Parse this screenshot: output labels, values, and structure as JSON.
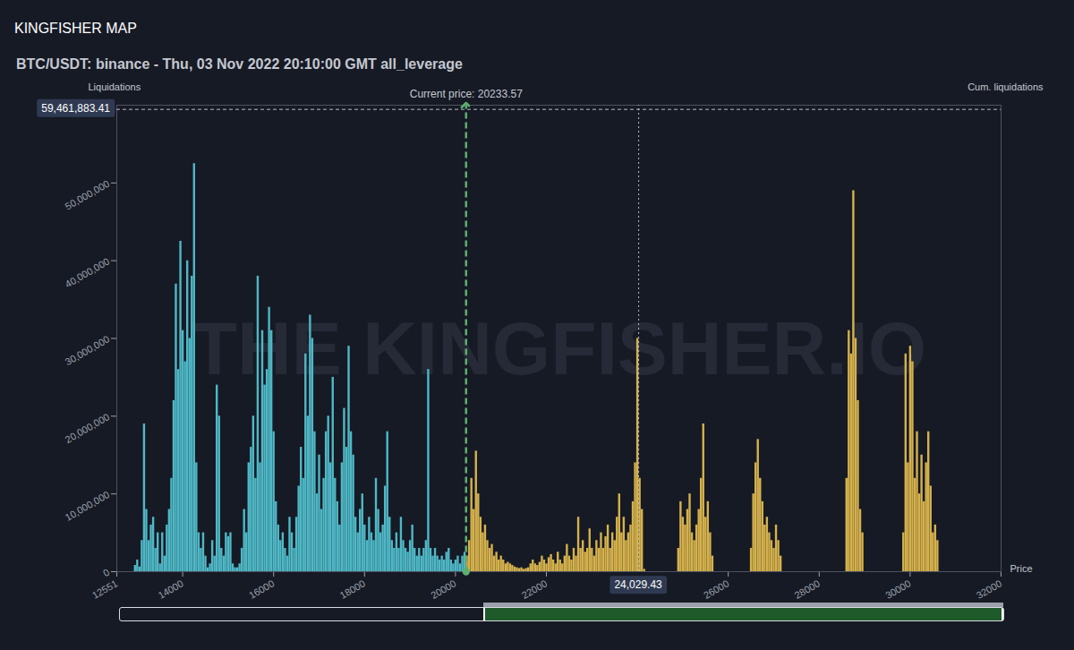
{
  "chart_data": {
    "type": "bar",
    "title": "KINGFISHER MAP",
    "subtitle": "BTC/USDT: binance - Thu, 03 Nov 2022 20:10:00 GMT all_leverage",
    "y_label": "Liquidations",
    "y2_label": "Cum. liquidations",
    "x_label": "Price",
    "watermark": "THE KINGFISHER.IO",
    "xlim": [
      12551,
      32000
    ],
    "xticks": [
      12551,
      14000,
      16000,
      18000,
      20000,
      22000,
      26000,
      28000,
      30000,
      32000
    ],
    "ylim": [
      0,
      60000000
    ],
    "yticks": [
      0,
      {
        "value": 10000000,
        "label": "10,000,000"
      },
      {
        "value": 20000000,
        "label": "20,000,000"
      },
      {
        "value": 30000000,
        "label": "30,000,000"
      },
      {
        "value": 40000000,
        "label": "40,000,000"
      },
      {
        "value": 50000000,
        "label": "50,000,000"
      }
    ],
    "grid": false,
    "annotations": [
      {
        "text": "Current price: 20233.57",
        "x": 20233.57
      }
    ],
    "crosshair": {
      "x": {
        "value": 24029.43,
        "label": "24,029.43"
      },
      "y": {
        "value": 59461883.41,
        "label": "59,461,883.41"
      }
    },
    "series": [
      {
        "color": "#4fb8c6",
        "x": [
          12950,
          13000,
          13050,
          13100,
          13150,
          13200,
          13250,
          13300,
          13350,
          13400,
          13450,
          13500,
          13550,
          13600,
          13650,
          13700,
          13750,
          13800,
          13850,
          13900,
          13950,
          14000,
          14050,
          14100,
          14150,
          14200,
          14250,
          14300,
          14350,
          14400,
          14450,
          14500,
          14550,
          14600,
          14650,
          14700,
          14750,
          14800,
          14850,
          14900,
          14950,
          15000,
          15050,
          15100,
          15150,
          15200,
          15250,
          15300,
          15350,
          15400,
          15450,
          15500,
          15550,
          15600,
          15650,
          15700,
          15750,
          15800,
          15850,
          15900,
          15950,
          16000,
          16050,
          16100,
          16150,
          16200,
          16250,
          16300,
          16350,
          16400,
          16450,
          16500,
          16550,
          16600,
          16650,
          16700,
          16750,
          16800,
          16850,
          16900,
          16950,
          17000,
          17050,
          17100,
          17150,
          17200,
          17250,
          17300,
          17350,
          17400,
          17450,
          17500,
          17550,
          17600,
          17650,
          17700,
          17750,
          17800,
          17850,
          17900,
          17950,
          18000,
          18050,
          18100,
          18150,
          18200,
          18250,
          18300,
          18350,
          18400,
          18450,
          18500,
          18550,
          18600,
          18650,
          18700,
          18750,
          18800,
          18850,
          18900,
          18950,
          19000,
          19050,
          19100,
          19150,
          19200,
          19250,
          19300,
          19350,
          19400,
          19450,
          19500,
          19550,
          19600,
          19650,
          19700,
          19750,
          19800,
          19850,
          19900,
          19950,
          20000,
          20050,
          20100,
          20150,
          20200
        ],
        "values": [
          800000,
          1500000,
          600000,
          4000000,
          19000000,
          8000000,
          4000000,
          6000000,
          7000000,
          3000000,
          5000000,
          1000000,
          5000000,
          2000000,
          6000000,
          8000000,
          12000000,
          22000000,
          37000000,
          26000000,
          42500000,
          31000000,
          27000000,
          40000000,
          30000000,
          38000000,
          52500000,
          14000000,
          5000000,
          3000000,
          5000000,
          2000000,
          500000,
          1000000,
          4000000,
          2000000,
          24000000,
          20000000,
          3000000,
          2000000,
          5000000,
          4500000,
          5000000,
          1000000,
          500000,
          500000,
          1000000,
          3000000,
          8000000,
          5000000,
          14000000,
          16000000,
          20000000,
          12000000,
          38000000,
          14000000,
          31000000,
          24000000,
          26000000,
          34000000,
          31000000,
          18000000,
          9000000,
          6000000,
          4000000,
          5000000,
          3000000,
          2000000,
          7000000,
          5000000,
          3000000,
          7000000,
          11000000,
          16000000,
          12000000,
          28000000,
          20000000,
          33000000,
          30000000,
          18000000,
          10000000,
          15000000,
          8000000,
          12000000,
          18000000,
          20000000,
          14000000,
          25000000,
          12000000,
          9000000,
          6000000,
          14000000,
          21000000,
          16000000,
          29000000,
          18000000,
          15000000,
          7000000,
          5000000,
          8000000,
          10000000,
          6000000,
          4000000,
          7000000,
          5000000,
          4000000,
          12000000,
          8000000,
          5000000,
          6000000,
          11000000,
          18000000,
          7000000,
          4000000,
          3000000,
          5000000,
          3000000,
          7000000,
          4000000,
          3000000,
          2500000,
          4000000,
          6000000,
          3000000,
          2000000,
          3000000,
          2000000,
          3000000,
          4000000,
          26000000,
          3000000,
          2000000,
          3000000,
          2000000,
          1500000,
          2000000,
          1500000,
          2500000,
          3000000,
          1500000,
          1000000,
          1500000,
          2000000,
          1000000,
          2000000,
          2500000
        ]
      },
      {
        "color": "#d6b24c",
        "x": [
          20250,
          20300,
          20350,
          20400,
          20450,
          20500,
          20550,
          20600,
          20650,
          20700,
          20750,
          20800,
          20850,
          20900,
          20950,
          21000,
          21050,
          21100,
          21150,
          21200,
          21250,
          21300,
          21350,
          21400,
          21450,
          21500,
          21550,
          21600,
          21650,
          21700,
          21750,
          21800,
          21850,
          21900,
          21950,
          22000,
          22050,
          22100,
          22150,
          22200,
          22250,
          22300,
          22350,
          22400,
          22450,
          22500,
          22550,
          22600,
          22650,
          22700,
          22750,
          22800,
          22850,
          22900,
          22950,
          23000,
          23050,
          23100,
          23150,
          23200,
          23250,
          23300,
          23350,
          23400,
          23450,
          23500,
          23550,
          23600,
          23650,
          23700,
          23750,
          23800,
          23850,
          23900,
          23950,
          24000,
          24050,
          24100,
          24150,
          24900,
          24950,
          25000,
          25050,
          25100,
          25150,
          25200,
          25250,
          25300,
          25350,
          25400,
          25450,
          25500,
          25550,
          25600,
          25650,
          26500,
          26550,
          26600,
          26650,
          26700,
          26750,
          26800,
          26850,
          26900,
          26950,
          27000,
          27050,
          27100,
          27150,
          28600,
          28650,
          28700,
          28750,
          28800,
          28850,
          28900,
          28950,
          29850,
          29900,
          29950,
          30000,
          30050,
          30100,
          30150,
          30200,
          30250,
          30300,
          30350,
          30400,
          30450,
          30500,
          30550,
          30600
        ],
        "values": [
          2000000,
          4000000,
          12000000,
          8000000,
          15500000,
          10000000,
          7000000,
          5000000,
          6000000,
          4000000,
          3000000,
          3500000,
          2000000,
          2500000,
          1500000,
          2000000,
          1500000,
          1000000,
          1200000,
          1000000,
          800000,
          600000,
          500000,
          400000,
          500000,
          300000,
          400000,
          500000,
          1000000,
          1500000,
          1000000,
          800000,
          1200000,
          2000000,
          1500000,
          1000000,
          1800000,
          2200000,
          1500000,
          1000000,
          2500000,
          1500000,
          1000000,
          2000000,
          3500000,
          2000000,
          1500000,
          3000000,
          2000000,
          7000000,
          3000000,
          4000000,
          2500000,
          3000000,
          5500000,
          3000000,
          2000000,
          4000000,
          3000000,
          5000000,
          3000000,
          4500000,
          6000000,
          3000000,
          5000000,
          4000000,
          7000000,
          10000000,
          5000000,
          7000000,
          4000000,
          5000000,
          6000000,
          9000000,
          14000000,
          30000000,
          12000000,
          8000000,
          300000,
          3000000,
          9000000,
          7000000,
          6000000,
          8000000,
          10000000,
          5000000,
          4000000,
          6000000,
          8000000,
          12000000,
          19000000,
          7000000,
          9000000,
          5000000,
          2000000,
          3000000,
          10000000,
          14000000,
          17000000,
          12000000,
          9000000,
          6000000,
          7000000,
          5000000,
          4000000,
          3000000,
          6000000,
          4000000,
          2000000,
          12000000,
          31000000,
          28000000,
          49000000,
          30000000,
          22000000,
          8000000,
          5000000,
          5000000,
          28000000,
          14000000,
          29000000,
          27000000,
          12000000,
          18000000,
          10000000,
          15000000,
          9000000,
          14000000,
          18000000,
          11000000,
          5000000,
          6000000,
          4000000
        ]
      }
    ]
  }
}
